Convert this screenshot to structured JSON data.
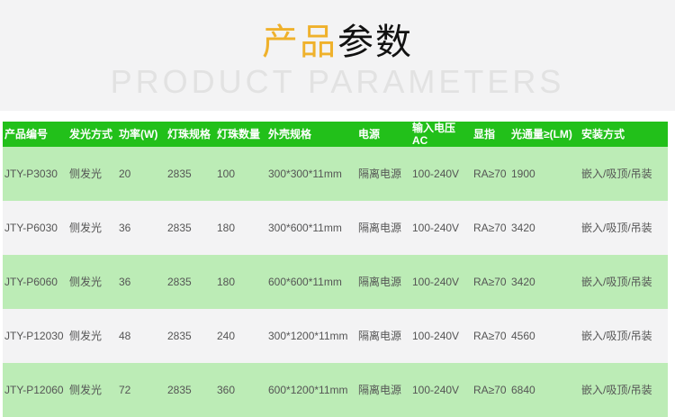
{
  "header": {
    "title_highlight": "产品",
    "title_rest": "参数",
    "bg_text": "PRODUCT PARAMETERS"
  },
  "colors": {
    "accent": "#efb12b",
    "header_green": "#22c01a",
    "row_green": "#bcecb6",
    "row_gray": "#f3f3f4"
  },
  "table": {
    "columns": [
      "产品编号",
      "发光方式",
      "功率(W)",
      "灯珠规格",
      "灯珠数量",
      "外壳规格",
      "电源",
      "输入电压AC",
      "显指",
      "光通量≥(LM)",
      "安装方式"
    ],
    "rows": [
      [
        "JTY-P3030",
        "侧发光",
        "20",
        "2835",
        "100",
        "300*300*11mm",
        "隔离电源",
        "100-240V",
        "RA≥70",
        "1900",
        "嵌入/吸顶/吊装"
      ],
      [
        "JTY-P6030",
        "侧发光",
        "36",
        "2835",
        "180",
        "300*600*11mm",
        "隔离电源",
        "100-240V",
        "RA≥70",
        "3420",
        "嵌入/吸顶/吊装"
      ],
      [
        "JTY-P6060",
        "侧发光",
        "36",
        "2835",
        "180",
        "600*600*11mm",
        "隔离电源",
        "100-240V",
        "RA≥70",
        "3420",
        "嵌入/吸顶/吊装"
      ],
      [
        "JTY-P12030",
        "侧发光",
        "48",
        "2835",
        "240",
        "300*1200*11mm",
        "隔离电源",
        "100-240V",
        "RA≥70",
        "4560",
        "嵌入/吸顶/吊装"
      ],
      [
        "JTY-P12060",
        "侧发光",
        "72",
        "2835",
        "360",
        "600*1200*11mm",
        "隔离电源",
        "100-240V",
        "RA≥70",
        "6840",
        "嵌入/吸顶/吊装"
      ]
    ]
  }
}
